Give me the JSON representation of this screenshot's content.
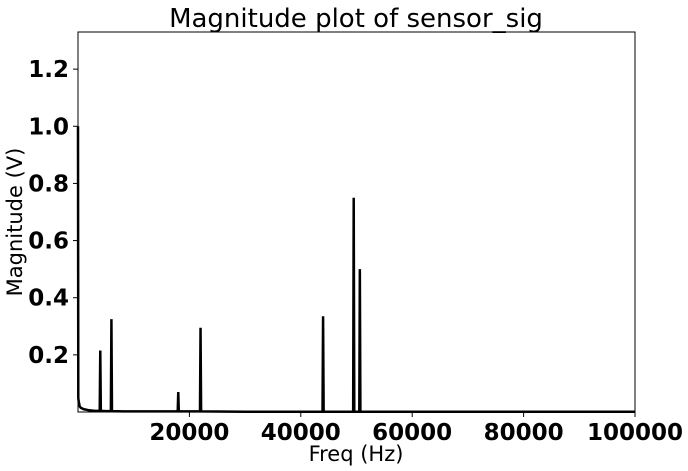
{
  "chart_data": {
    "type": "line",
    "title": "Magnitude plot of sensor_sig",
    "xlabel": "Freq (Hz)",
    "ylabel": "Magnitude (V)",
    "xlim": [
      0,
      100000
    ],
    "ylim": [
      0,
      1.33
    ],
    "xticks": [
      20000,
      40000,
      60000,
      80000,
      100000
    ],
    "xtick_labels": [
      "20000",
      "40000",
      "60000",
      "80000",
      "100000"
    ],
    "yticks": [
      0.2,
      0.4,
      0.6,
      0.8,
      1.0,
      1.2
    ],
    "ytick_labels": [
      "0.2",
      "0.4",
      "0.6",
      "0.8",
      "1.0",
      "1.2"
    ],
    "grid": false,
    "line_color": "#000000",
    "series": [
      {
        "x": [
          0,
          50,
          100,
          300,
          500,
          1000,
          2000,
          3000,
          3900,
          4000,
          4100,
          5000,
          5900,
          6000,
          6100,
          8000,
          10000,
          15000,
          17900,
          18000,
          18100,
          20000,
          21900,
          22000,
          22100,
          30000,
          40000,
          43900,
          44000,
          44100,
          47000,
          49400,
          49500,
          49600,
          50500,
          50600,
          50700,
          55000,
          60000,
          80000,
          100000
        ],
        "y": [
          1.0,
          0.05,
          0.04,
          0.02,
          0.015,
          0.01,
          0.006,
          0.004,
          0.004,
          0.215,
          0.004,
          0.003,
          0.003,
          0.325,
          0.003,
          0.002,
          0.002,
          0.002,
          0.002,
          0.07,
          0.002,
          0.002,
          0.002,
          0.295,
          0.002,
          0.001,
          0.001,
          0.001,
          0.335,
          0.001,
          0.001,
          0.001,
          0.75,
          0.001,
          0.001,
          0.5,
          0.001,
          0.001,
          0.001,
          0.001,
          0.001
        ]
      }
    ]
  }
}
